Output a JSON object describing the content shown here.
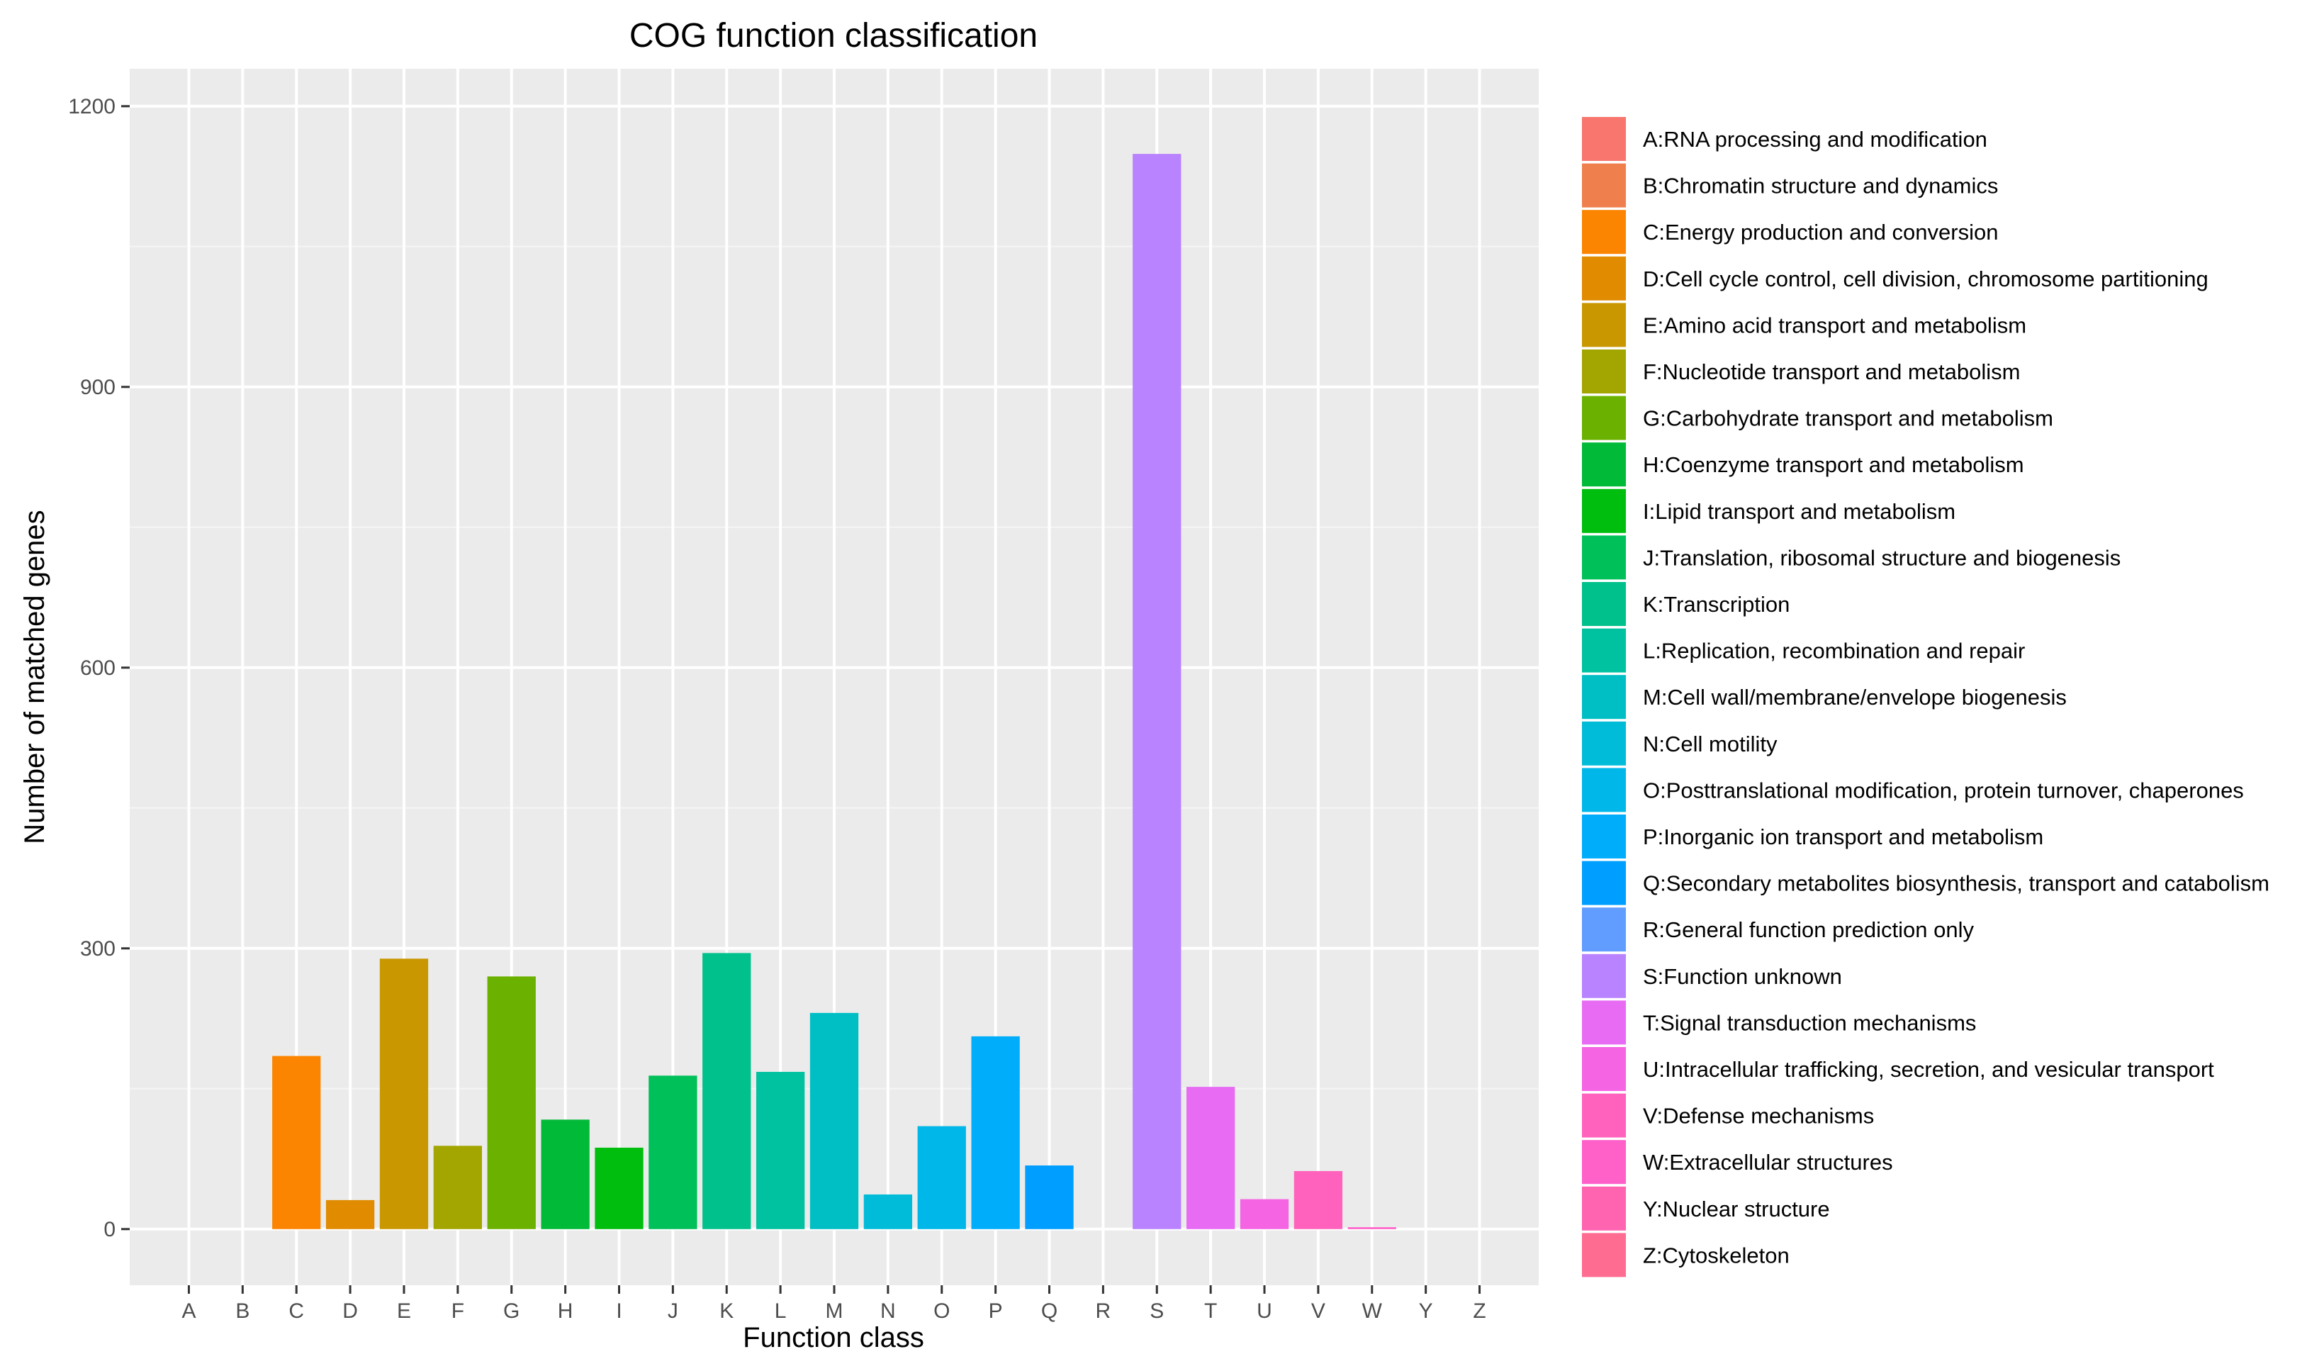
{
  "chart_data": {
    "type": "bar",
    "title": "COG function classification",
    "xlabel": "Function class",
    "ylabel": "Number of matched genes",
    "ylim": [
      -60,
      1240
    ],
    "yticks": [
      0,
      300,
      600,
      900,
      1200
    ],
    "grid": true,
    "legend_position": "right",
    "categories": [
      "A",
      "B",
      "C",
      "D",
      "E",
      "F",
      "G",
      "H",
      "I",
      "J",
      "K",
      "L",
      "M",
      "N",
      "O",
      "P",
      "Q",
      "R",
      "S",
      "T",
      "U",
      "V",
      "W",
      "Y",
      "Z"
    ],
    "values": [
      0,
      0,
      185,
      31,
      289,
      89,
      270,
      117,
      87,
      164,
      295,
      168,
      231,
      37,
      110,
      206,
      68,
      0,
      1149,
      152,
      32,
      62,
      2,
      0,
      0
    ],
    "colors": [
      "#F8766D",
      "#F07F4E",
      "#FB8500",
      "#E08B00",
      "#C99800",
      "#A3A500",
      "#6BB100",
      "#00BA38",
      "#00BE0E",
      "#00C05A",
      "#00C08B",
      "#00C1A0",
      "#00BFC4",
      "#00BCD8",
      "#00B7E9",
      "#00ADFA",
      "#009EFF",
      "#619CFF",
      "#B983FF",
      "#E76BF3",
      "#F564E3",
      "#FF62BC",
      "#FF61C9",
      "#FF64B0",
      "#FF6C91"
    ],
    "legend": [
      "A:RNA processing and modification",
      "B:Chromatin structure and dynamics",
      "C:Energy production and conversion",
      "D:Cell cycle control, cell division, chromosome partitioning",
      "E:Amino acid transport and metabolism",
      "F:Nucleotide transport and metabolism",
      "G:Carbohydrate transport and metabolism",
      "H:Coenzyme transport and metabolism",
      "I:Lipid transport and metabolism",
      "J:Translation, ribosomal structure and biogenesis",
      "K:Transcription",
      "L:Replication, recombination and repair",
      "M:Cell wall/membrane/envelope biogenesis",
      "N:Cell motility",
      "O:Posttranslational modification, protein turnover, chaperones",
      "P:Inorganic ion transport and metabolism",
      "Q:Secondary metabolites biosynthesis, transport and catabolism",
      "R:General function prediction only",
      "S:Function unknown",
      "T:Signal transduction mechanisms",
      "U:Intracellular trafficking, secretion, and vesicular transport",
      "V:Defense mechanisms",
      "W:Extracellular structures",
      "Y:Nuclear structure",
      "Z:Cytoskeleton"
    ]
  }
}
